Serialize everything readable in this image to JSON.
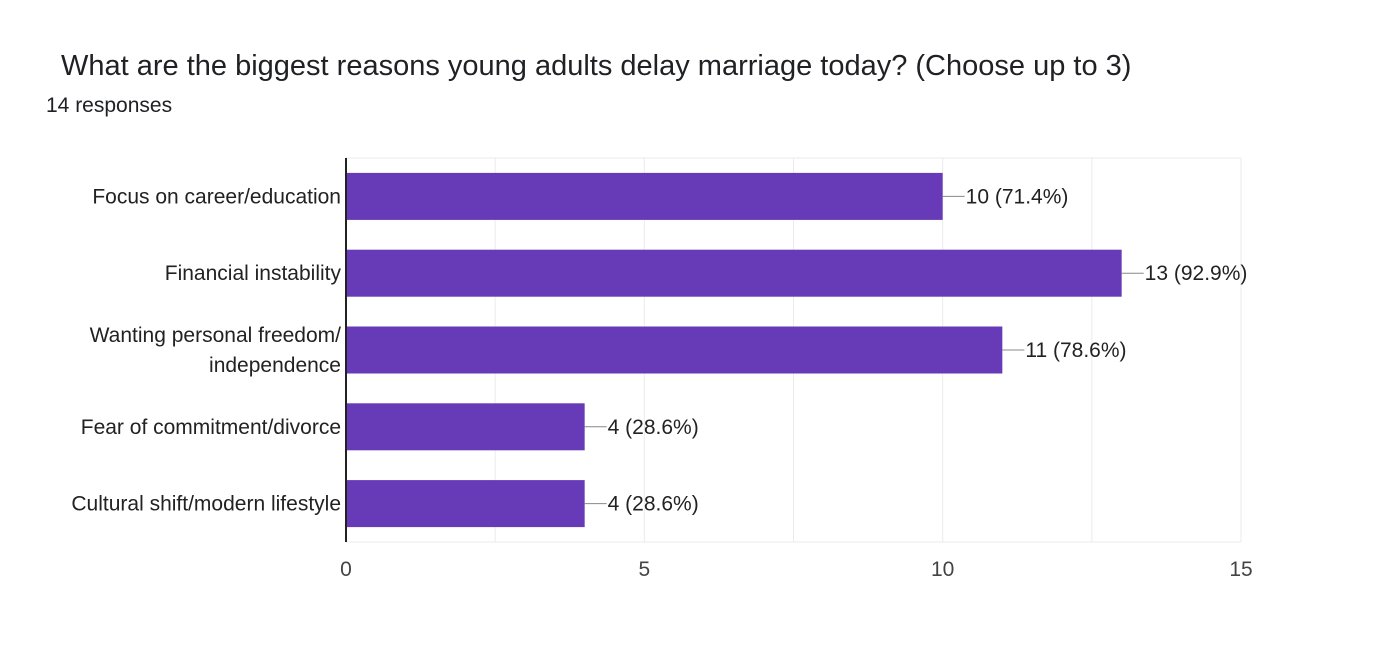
{
  "chart_data": {
    "type": "bar",
    "orientation": "horizontal",
    "title": "What are the biggest reasons young adults delay marriage today? (Choose up to 3)",
    "subtitle": "14 responses",
    "categories": [
      [
        "Focus on career/education"
      ],
      [
        "Financial instability"
      ],
      [
        "Wanting personal freedom/",
        "independence"
      ],
      [
        "Fear of commitment/divorce"
      ],
      [
        "Cultural shift/modern lifestyle"
      ]
    ],
    "values": [
      10,
      13,
      11,
      4,
      4
    ],
    "data_labels": [
      "10 (71.4%)",
      "13 (92.9%)",
      "11 (78.6%)",
      "4 (28.6%)",
      "4 (28.6%)"
    ],
    "xlim": [
      0,
      15
    ],
    "xticks": [
      0,
      5,
      10,
      15
    ],
    "grid": true,
    "bar_color": "#673ab7",
    "grid_color": "#ebebeb",
    "axis_color": "#222222"
  }
}
